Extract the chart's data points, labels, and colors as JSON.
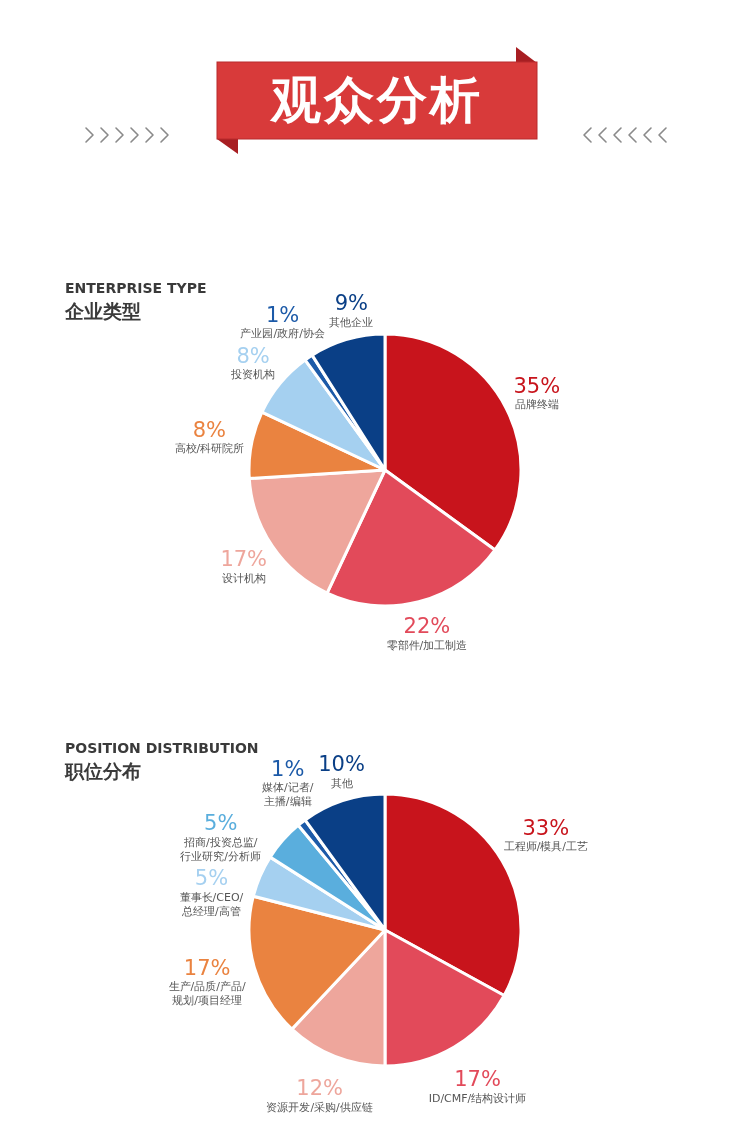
{
  "chart_data": [
    {
      "type": "other",
      "title": "观众分析"
    },
    {
      "type": "pie",
      "subtitle": "ENTERPRISE TYPE",
      "title": "企业类型",
      "categories": [
        "品牌终端",
        "零部件/加工制造",
        "设计机构",
        "高校/科研院所",
        "投资机构",
        "产业园/政府/协会",
        "其他企业"
      ],
      "values": [
        35,
        22,
        17,
        8,
        8,
        1,
        9
      ],
      "colors": [
        "#c8141c",
        "#e24a5a",
        "#eea69c",
        "#ea8340",
        "#a5d0f0",
        "#1c5aa8",
        "#0a3f86"
      ],
      "value_labels": [
        "35%",
        "22%",
        "17%",
        "8%",
        "8%",
        "1%",
        "9%"
      ]
    },
    {
      "type": "pie",
      "subtitle": "POSITION DISTRIBUTION",
      "title": "职位分布",
      "categories": [
        "工程师/模具/工艺",
        "ID/CMF/结构设计师",
        "资源开发/采购/供应链",
        "生产/品质/产品/\n规划/项目经理",
        "董事长/CEO/\n总经理/高管",
        "招商/投资总监/\n行业研究/分析师",
        "媒体/记者/\n主播/编辑",
        "其他"
      ],
      "values": [
        33,
        17,
        12,
        17,
        5,
        5,
        1,
        10
      ],
      "colors": [
        "#c8141c",
        "#e24a5a",
        "#eea69c",
        "#ea8340",
        "#a5d0f0",
        "#5aaedd",
        "#1c5aa8",
        "#0a3f86"
      ],
      "value_labels": [
        "33%",
        "17%",
        "12%",
        "17%",
        "5%",
        "5%",
        "1%",
        "10%"
      ]
    }
  ]
}
